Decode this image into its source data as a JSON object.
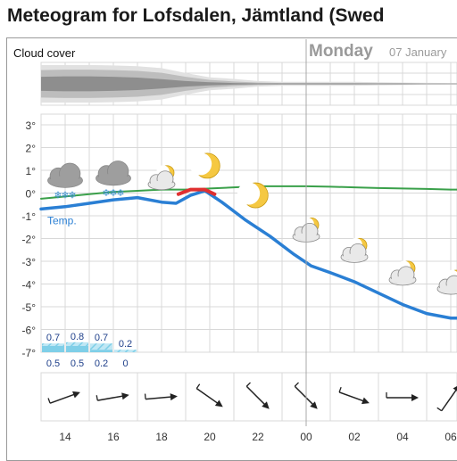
{
  "title": "Meteogram for Lofsdalen, Jämtland (Swed",
  "day_label": {
    "day": "Monday",
    "date": "07 January"
  },
  "chart_data": [
    {
      "type": "area",
      "title": "Cloud cover",
      "x_hours": [
        13,
        14,
        15,
        16,
        17,
        18,
        19,
        20,
        21,
        22,
        23,
        24,
        25,
        26,
        27,
        28,
        29,
        30,
        31
      ],
      "layers": [
        {
          "color": "#e1e1e1",
          "half_widths": [
            0.96,
            0.96,
            0.96,
            0.94,
            0.9,
            0.8,
            0.55,
            0.33,
            0.25,
            0.14,
            0.1,
            0.1,
            0.1,
            0.1,
            0.08,
            0.06,
            0.05,
            0.04,
            0.04
          ]
        },
        {
          "color": "#bdbdbd",
          "half_widths": [
            0.7,
            0.72,
            0.72,
            0.7,
            0.66,
            0.56,
            0.36,
            0.2,
            0.12,
            0.06,
            0.04,
            0.04,
            0.04,
            0.04,
            0.03,
            0.03,
            0.02,
            0.02,
            0.02
          ]
        },
        {
          "color": "#8e8e8e",
          "half_widths": [
            0.36,
            0.38,
            0.38,
            0.36,
            0.32,
            0.24,
            0.14,
            0.08,
            0.04,
            0.02,
            0.02,
            0.02,
            0.02,
            0.02,
            0.02,
            0.02,
            0.01,
            0.01,
            0.01
          ]
        }
      ]
    },
    {
      "type": "line",
      "y_unit": "°",
      "ylim": [
        -7,
        3
      ],
      "y_ticks": [
        3,
        2,
        1,
        0,
        -1,
        -2,
        -3,
        -4,
        -5,
        -6,
        -7
      ],
      "x_tick_labels": [
        "14",
        "16",
        "18",
        "20",
        "22",
        "00",
        "02",
        "04",
        "06"
      ],
      "x_tick_hours": [
        14,
        16,
        18,
        20,
        22,
        24,
        26,
        28,
        30
      ],
      "grid": true,
      "series": [
        {
          "name": "Temp.",
          "color": "#2a7fd4",
          "x": [
            13,
            14,
            15,
            16,
            17,
            18,
            18.6,
            19.2,
            19.8,
            20.5,
            21.5,
            22.5,
            23.5,
            24.2,
            25,
            26,
            27,
            28,
            29,
            30,
            31
          ],
          "y": [
            -0.7,
            -0.6,
            -0.45,
            -0.3,
            -0.2,
            -0.4,
            -0.45,
            -0.1,
            0.1,
            -0.4,
            -1.2,
            -1.9,
            -2.7,
            -3.2,
            -3.5,
            -3.9,
            -4.4,
            -4.9,
            -5.3,
            -5.5,
            -5.5
          ]
        },
        {
          "color": "#3aa04a",
          "x": [
            13,
            14,
            15,
            16,
            17,
            18,
            19,
            20,
            21,
            22,
            23,
            24,
            25,
            26,
            27,
            28,
            29,
            30,
            31
          ],
          "y": [
            -0.25,
            -0.15,
            -0.05,
            0.05,
            0.1,
            0.15,
            0.15,
            0.2,
            0.25,
            0.3,
            0.3,
            0.3,
            0.28,
            0.25,
            0.22,
            0.2,
            0.18,
            0.15,
            0.15
          ]
        },
        {
          "color": "#e03030",
          "x": [
            18.7,
            19.2,
            19.8,
            20.2
          ],
          "y": [
            -0.05,
            0.15,
            0.15,
            -0.05
          ]
        }
      ],
      "precipitation": {
        "bars": [
          {
            "hour_start": 13,
            "hour_end": 14,
            "max": 0.7,
            "min": 0.5
          },
          {
            "hour_start": 14,
            "hour_end": 15,
            "max": 0.8,
            "min": 0.5
          },
          {
            "hour_start": 15,
            "hour_end": 16,
            "max": 0.7,
            "min": 0.2
          },
          {
            "hour_start": 16,
            "hour_end": 17,
            "max": 0.2,
            "min": 0
          }
        ],
        "max_labels": [
          "0.7",
          "0.8",
          "0.7",
          "0.2"
        ],
        "min_labels": [
          "0.5",
          "0.5",
          "0.2",
          "0"
        ],
        "color": "#7fcfe8"
      },
      "weather_icons": [
        {
          "hour": 14,
          "temp": 0.7,
          "icon": "snow-cloud-icon"
        },
        {
          "hour": 16,
          "temp": 0.8,
          "icon": "snow-cloud-icon"
        },
        {
          "hour": 18,
          "temp": 0.5,
          "icon": "partly-cloudy-night-icon"
        },
        {
          "hour": 19.9,
          "temp": 1.2,
          "icon": "moon-icon"
        },
        {
          "hour": 21.9,
          "temp": -0.1,
          "icon": "moon-icon"
        },
        {
          "hour": 24,
          "temp": -1.8,
          "icon": "partly-cloudy-night-icon"
        },
        {
          "hour": 26,
          "temp": -2.7,
          "icon": "partly-cloudy-night-icon"
        },
        {
          "hour": 28,
          "temp": -3.7,
          "icon": "partly-cloudy-night-icon"
        },
        {
          "hour": 30,
          "temp": -4.1,
          "icon": "partly-cloudy-night-icon"
        }
      ],
      "wind_arrows": [
        {
          "hour": 14,
          "angle_deg": -20
        },
        {
          "hour": 16,
          "angle_deg": -10
        },
        {
          "hour": 18,
          "angle_deg": -5
        },
        {
          "hour": 20,
          "angle_deg": 35
        },
        {
          "hour": 22,
          "angle_deg": 45
        },
        {
          "hour": 24,
          "angle_deg": 45
        },
        {
          "hour": 26,
          "angle_deg": 20
        },
        {
          "hour": 28,
          "angle_deg": 0
        },
        {
          "hour": 30,
          "angle_deg": -55
        }
      ],
      "colors": {
        "grid": "#d8d8d8",
        "day_divider": "#a8a8a8",
        "axis_text": "#333333",
        "day_label": "#9a9a9a"
      }
    }
  ]
}
